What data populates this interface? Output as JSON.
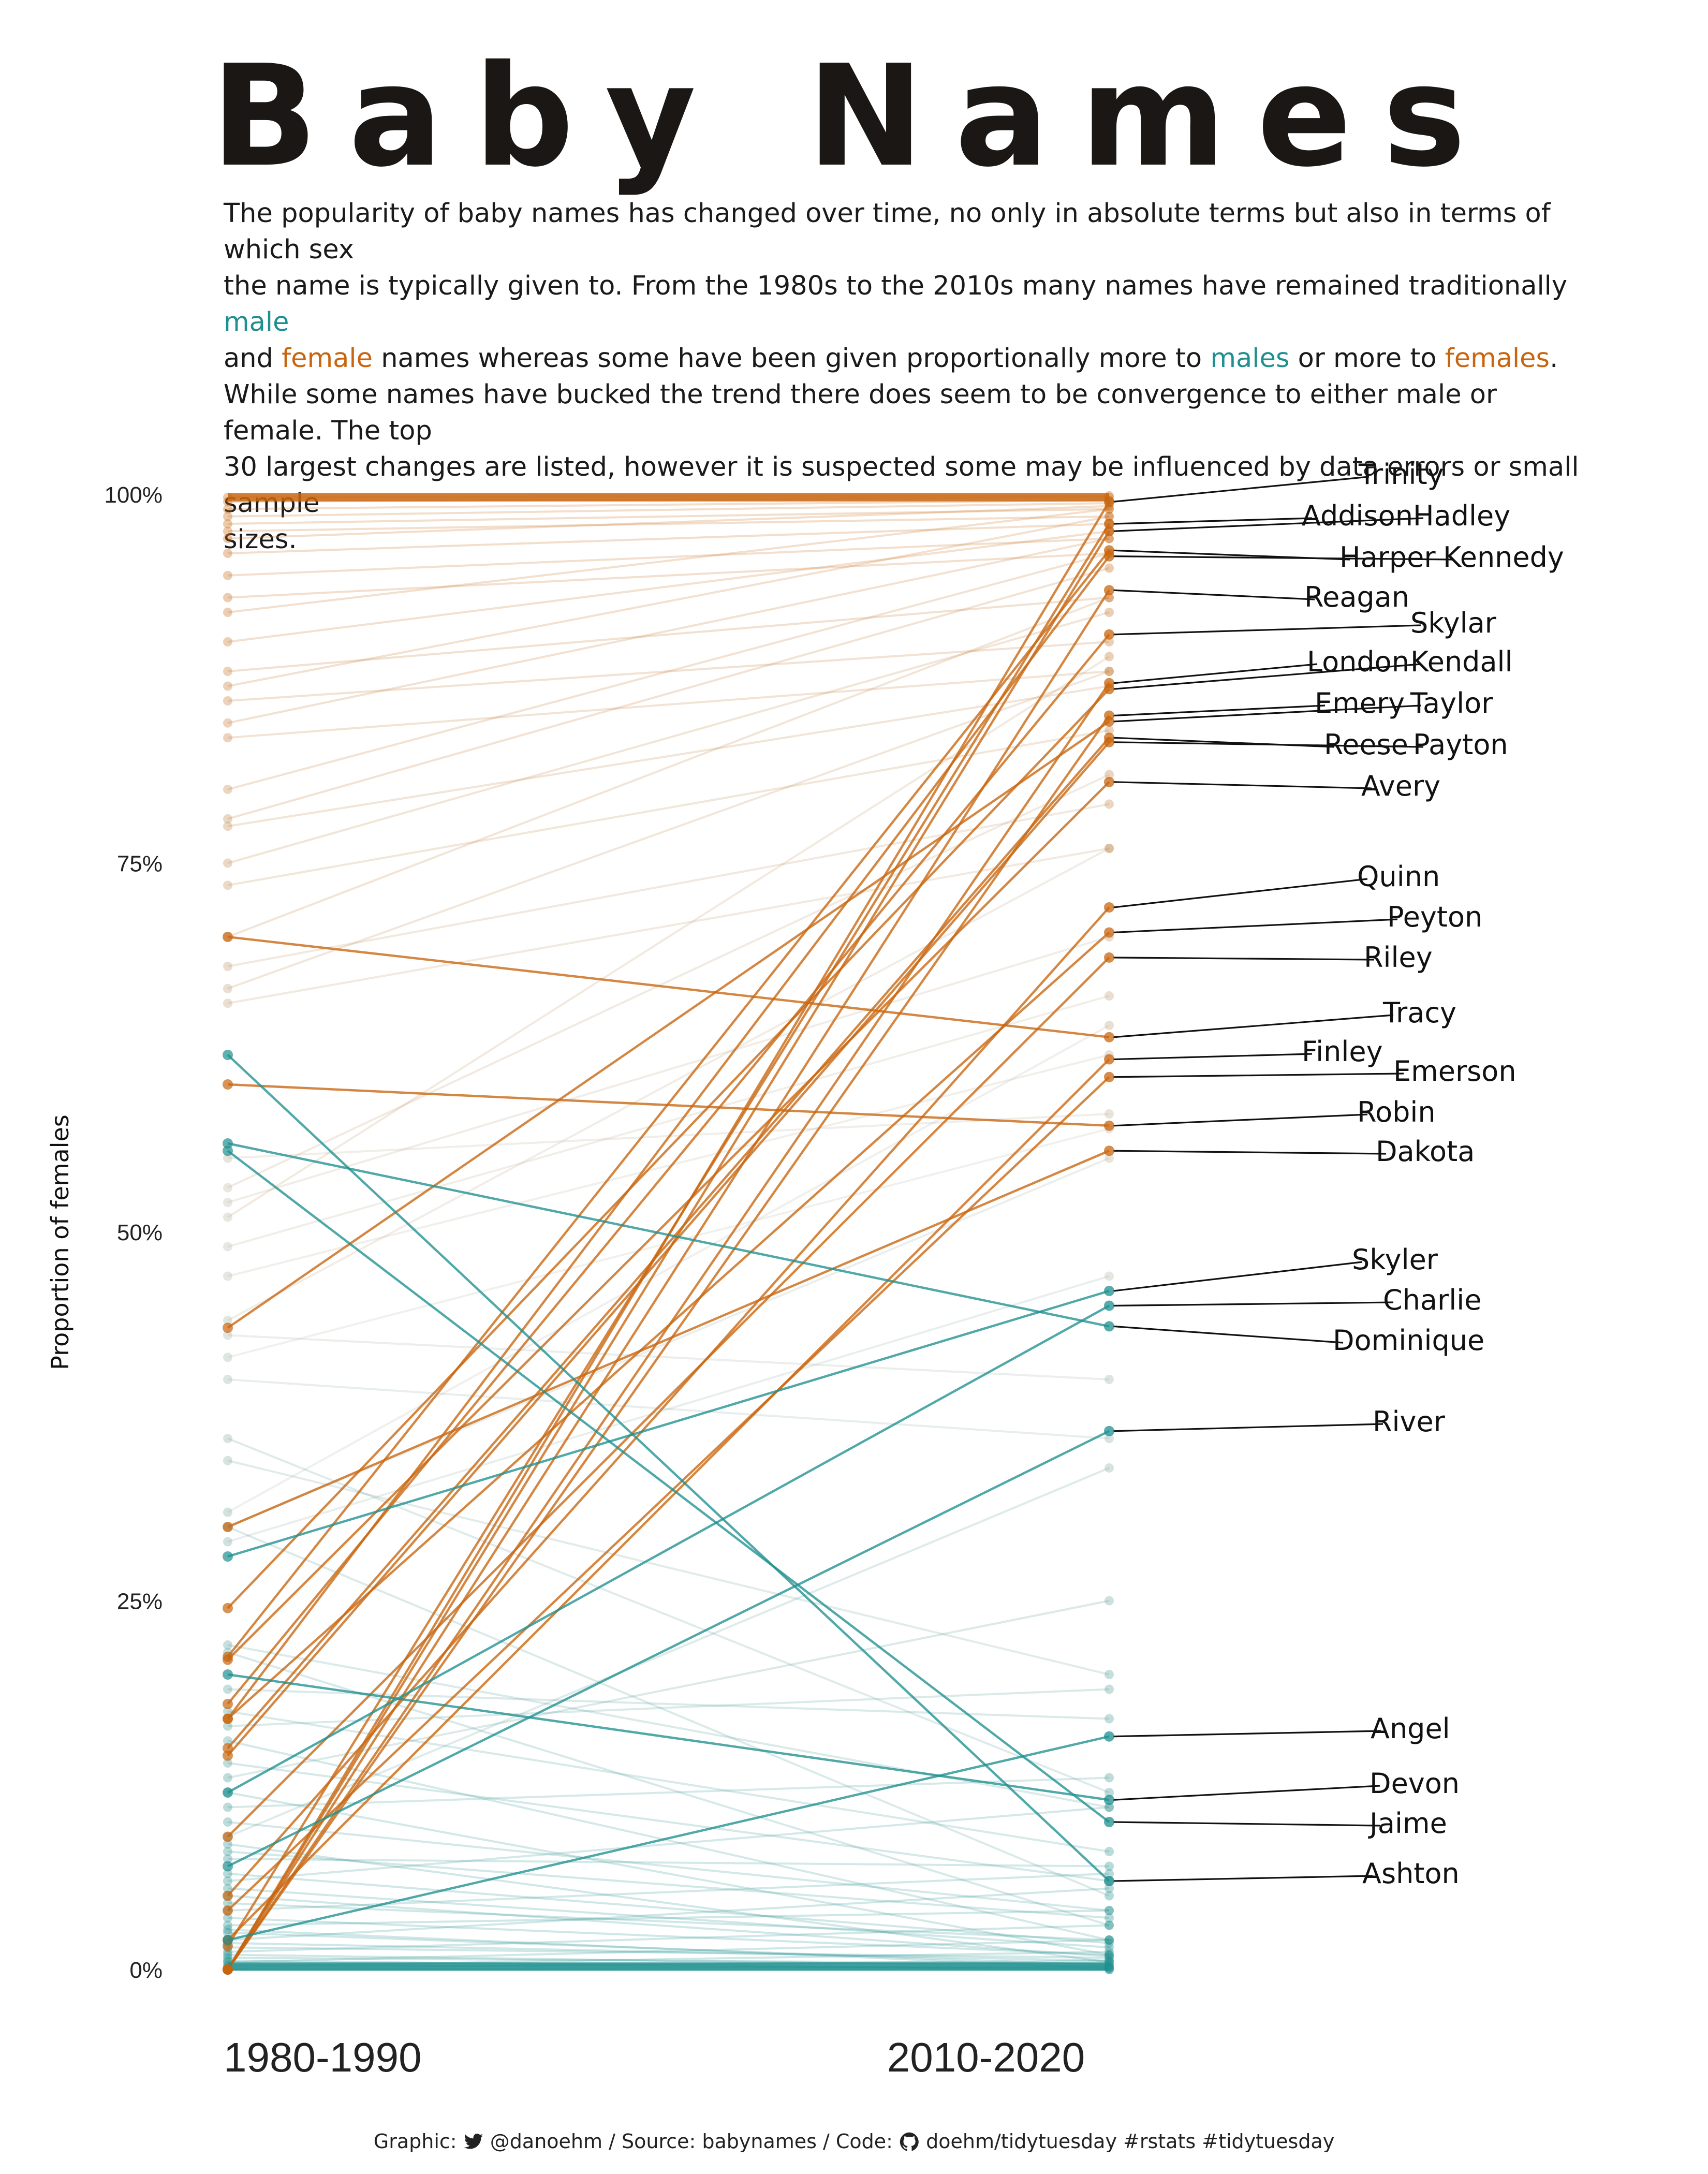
{
  "title": "Baby Names",
  "subtitle": {
    "line1": "The popularity of baby names has changed over time, no only in absolute terms but also in terms of which sex",
    "line2a": "the name is typically given to. From the 1980s to the 2010s many names have remained traditionally ",
    "male": "male",
    "line3a": "and ",
    "female": "female",
    "line3b": " names whereas some have been given proportionally more to ",
    "males": "males",
    "line3c": " or more to ",
    "females": "females",
    "line3d": ".",
    "line4": "While some names have bucked the trend there does seem to be convergence to either male or female. The top",
    "line5": "30 largest changes are listed, however it is suspected some may be influenced by data errors or small sample",
    "line6": "sizes."
  },
  "colors": {
    "male": "#1f8f8f",
    "female": "#c8650e",
    "label_line": "#111111"
  },
  "chart_data": {
    "type": "slope",
    "ylabel": "Proportion of females",
    "ylim": [
      0,
      1
    ],
    "yticks": [
      {
        "value": 0,
        "label": "0%"
      },
      {
        "value": 0.25,
        "label": "25%"
      },
      {
        "value": 0.5,
        "label": "50%"
      },
      {
        "value": 0.75,
        "label": "75%"
      },
      {
        "value": 1,
        "label": "100%"
      }
    ],
    "periods": [
      "1980-1990",
      "2010-2020"
    ],
    "highlighted": [
      {
        "name": "Trinity",
        "start": 0.0,
        "end": 0.995
      },
      {
        "name": "Addison",
        "start": 0.016,
        "end": 0.98
      },
      {
        "name": "Hadley",
        "start": 0.0,
        "end": 0.975
      },
      {
        "name": "Harper",
        "start": 0.212,
        "end": 0.962
      },
      {
        "name": "Kennedy",
        "start": 0.17,
        "end": 0.958
      },
      {
        "name": "Reagan",
        "start": 0.0,
        "end": 0.935
      },
      {
        "name": "Skylar",
        "start": 0.18,
        "end": 0.905
      },
      {
        "name": "London",
        "start": 0.0,
        "end": 0.872
      },
      {
        "name": "Kendall",
        "start": 0.245,
        "end": 0.868
      },
      {
        "name": "Emery",
        "start": 0.0,
        "end": 0.85
      },
      {
        "name": "Taylor",
        "start": 0.435,
        "end": 0.846
      },
      {
        "name": "Reese",
        "start": 0.15,
        "end": 0.835
      },
      {
        "name": "Payton",
        "start": 0.145,
        "end": 0.832
      },
      {
        "name": "Avery",
        "start": 0.21,
        "end": 0.805
      },
      {
        "name": "Quinn",
        "start": 0.05,
        "end": 0.72
      },
      {
        "name": "Peyton",
        "start": 0.17,
        "end": 0.703
      },
      {
        "name": "Riley",
        "start": 0.09,
        "end": 0.686
      },
      {
        "name": "Tracy",
        "start": 0.7,
        "end": 0.632
      },
      {
        "name": "Finley",
        "start": 0.02,
        "end": 0.617
      },
      {
        "name": "Emerson",
        "start": 0.04,
        "end": 0.605
      },
      {
        "name": "Robin",
        "start": 0.6,
        "end": 0.572
      },
      {
        "name": "Dakota",
        "start": 0.3,
        "end": 0.555
      },
      {
        "name": "Skyler",
        "start": 0.28,
        "end": 0.46
      },
      {
        "name": "Charlie",
        "start": 0.12,
        "end": 0.45
      },
      {
        "name": "Dominique",
        "start": 0.56,
        "end": 0.436
      },
      {
        "name": "River",
        "start": 0.07,
        "end": 0.365
      },
      {
        "name": "Angel",
        "start": 0.02,
        "end": 0.158
      },
      {
        "name": "Devon",
        "start": 0.2,
        "end": 0.115
      },
      {
        "name": "Jaime",
        "start": 0.555,
        "end": 0.1
      },
      {
        "name": "Ashton",
        "start": 0.62,
        "end": 0.06
      }
    ],
    "background": [
      {
        "start": 0.998,
        "end": 0.999
      },
      {
        "start": 0.995,
        "end": 0.998
      },
      {
        "start": 0.99,
        "end": 0.996
      },
      {
        "start": 0.985,
        "end": 0.994
      },
      {
        "start": 0.98,
        "end": 0.99
      },
      {
        "start": 0.975,
        "end": 0.985
      },
      {
        "start": 0.97,
        "end": 0.992
      },
      {
        "start": 0.96,
        "end": 0.98
      },
      {
        "start": 0.945,
        "end": 0.97
      },
      {
        "start": 0.93,
        "end": 0.96
      },
      {
        "start": 0.92,
        "end": 0.99
      },
      {
        "start": 0.9,
        "end": 0.975
      },
      {
        "start": 0.88,
        "end": 0.93
      },
      {
        "start": 0.87,
        "end": 0.985
      },
      {
        "start": 0.86,
        "end": 0.9
      },
      {
        "start": 0.845,
        "end": 0.97
      },
      {
        "start": 0.835,
        "end": 0.88
      },
      {
        "start": 0.8,
        "end": 0.96
      },
      {
        "start": 0.78,
        "end": 0.95
      },
      {
        "start": 0.775,
        "end": 0.87
      },
      {
        "start": 0.75,
        "end": 0.92
      },
      {
        "start": 0.735,
        "end": 0.84
      },
      {
        "start": 0.7,
        "end": 0.93
      },
      {
        "start": 0.68,
        "end": 0.79
      },
      {
        "start": 0.665,
        "end": 0.88
      },
      {
        "start": 0.655,
        "end": 0.76
      },
      {
        "start": 0.53,
        "end": 0.81
      },
      {
        "start": 0.52,
        "end": 0.7
      },
      {
        "start": 0.51,
        "end": 0.89
      },
      {
        "start": 0.49,
        "end": 0.66
      },
      {
        "start": 0.47,
        "end": 0.62
      },
      {
        "start": 0.44,
        "end": 0.76
      },
      {
        "start": 0.415,
        "end": 0.57
      },
      {
        "start": 0.31,
        "end": 0.64
      },
      {
        "start": 0.3,
        "end": 0.55
      },
      {
        "start": 0.29,
        "end": 0.47
      },
      {
        "start": 0.36,
        "end": 0.12
      },
      {
        "start": 0.345,
        "end": 0.2
      },
      {
        "start": 0.3,
        "end": 0.05
      },
      {
        "start": 0.22,
        "end": 0.11
      },
      {
        "start": 0.215,
        "end": 0.03
      },
      {
        "start": 0.19,
        "end": 0.17
      },
      {
        "start": 0.175,
        "end": 0.08
      },
      {
        "start": 0.165,
        "end": 0.19
      },
      {
        "start": 0.155,
        "end": 0.02
      },
      {
        "start": 0.14,
        "end": 0.06
      },
      {
        "start": 0.13,
        "end": 0.25
      },
      {
        "start": 0.12,
        "end": 0.01
      },
      {
        "start": 0.11,
        "end": 0.13
      },
      {
        "start": 0.1,
        "end": 0.04
      },
      {
        "start": 0.09,
        "end": 0.34
      },
      {
        "start": 0.085,
        "end": 0.005
      },
      {
        "start": 0.075,
        "end": 0.07
      },
      {
        "start": 0.06,
        "end": 0.11
      },
      {
        "start": 0.055,
        "end": 0.015
      },
      {
        "start": 0.045,
        "end": 0.02
      },
      {
        "start": 0.04,
        "end": 0.065
      },
      {
        "start": 0.035,
        "end": 0.01
      },
      {
        "start": 0.03,
        "end": 0.04
      },
      {
        "start": 0.025,
        "end": 0.003
      },
      {
        "start": 0.02,
        "end": 0.055
      },
      {
        "start": 0.015,
        "end": 0.008
      },
      {
        "start": 0.012,
        "end": 0.03
      },
      {
        "start": 0.008,
        "end": 0.004
      },
      {
        "start": 0.005,
        "end": 0.02
      },
      {
        "start": 0.003,
        "end": 0.001
      },
      {
        "start": 0.002,
        "end": 0.012
      },
      {
        "start": 0.001,
        "end": 0.006
      },
      {
        "start": 0.0,
        "end": 0.002
      },
      {
        "start": 0.0,
        "end": 0.0
      },
      {
        "start": 0.006,
        "end": 0.0
      },
      {
        "start": 0.01,
        "end": 0.002
      },
      {
        "start": 0.018,
        "end": 0.006
      },
      {
        "start": 0.027,
        "end": 0.001
      },
      {
        "start": 0.05,
        "end": 0.009
      },
      {
        "start": 0.065,
        "end": 0.018
      },
      {
        "start": 0.08,
        "end": 0.035
      },
      {
        "start": 0.4,
        "end": 0.36
      },
      {
        "start": 0.43,
        "end": 0.4
      },
      {
        "start": 0.55,
        "end": 0.58
      }
    ]
  },
  "footer": {
    "prefix": "Graphic:",
    "handle": "@danoehm / Source: babynames / Code:",
    "code": "doehm/tidytuesday #rstats #tidytuesday",
    "twitter_icon": "twitter-bird-icon",
    "github_icon": "github-octocat-icon"
  }
}
